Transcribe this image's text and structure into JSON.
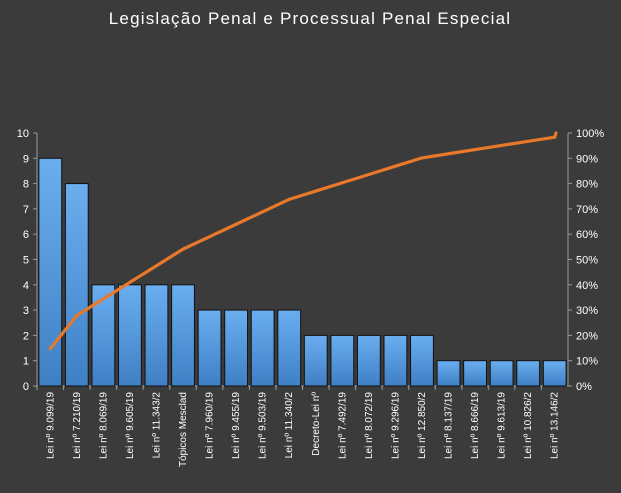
{
  "chart_data": {
    "type": "bar",
    "title": "Legislação Penal e Processual Penal Especial",
    "xlabel": "",
    "ylabel": "",
    "categories": [
      "Lei nº 9.099/19",
      "Lei nº 7.210/19",
      "Lei nº 8.069/19",
      "Lei nº 9.605/19",
      "Lei nº 11.343/2",
      "Tópicos Mesclad",
      "Lei nº 7.960/19",
      "Lei nº 9.455/19",
      "Lei nº 9.503/19",
      "Lei nº 11.340/2",
      "Decreto-Lei nº",
      "Lei nº 7.492/19",
      "Lei nº 8.072/19",
      "Lei nº 9.296/19",
      "Lei nº 12.850/2",
      "Lei nº 8.137/19",
      "Lei nº 8.666/19",
      "Lei nº 9.613/19",
      "Lei nº 10.826/2",
      "Lei nº 13.146/2"
    ],
    "series": [
      {
        "type": "bar",
        "axis": "left",
        "values": [
          9,
          8,
          4,
          4,
          4,
          4,
          3,
          3,
          3,
          3,
          2,
          2,
          2,
          2,
          2,
          1,
          1,
          1,
          1,
          1
        ]
      },
      {
        "type": "line",
        "axis": "right",
        "values": [
          0.1475,
          0.2787,
          0.3443,
          0.4098,
          0.4754,
          0.541,
          0.5902,
          0.6393,
          0.6885,
          0.7377,
          0.7705,
          0.8033,
          0.8361,
          0.8689,
          0.9016,
          0.918,
          0.9344,
          0.9508,
          0.9672,
          0.9836
        ]
      }
    ],
    "ylim": [
      0,
      10
    ],
    "yticks": [
      "0",
      "1",
      "2",
      "3",
      "4",
      "5",
      "6",
      "7",
      "8",
      "9",
      "10"
    ],
    "y2lim": [
      0,
      1
    ],
    "y2ticks": [
      "0%",
      "10%",
      "20%",
      "30%",
      "40%",
      "50%",
      "60%",
      "70%",
      "80%",
      "90%",
      "100%"
    ],
    "grid": false,
    "legend": "none",
    "colors": {
      "background": "#3b3b3b",
      "bar_fill": "#4f95d6",
      "bar_fill_top": "#6aaef0",
      "bar_stroke": "#111111",
      "line": "#e8782a",
      "axis": "#9a9a9a",
      "text": "#ffffff"
    }
  }
}
